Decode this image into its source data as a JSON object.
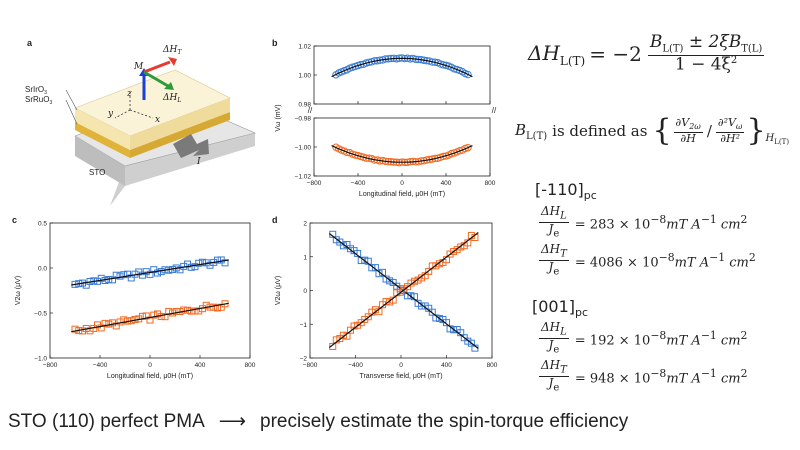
{
  "panels": {
    "a": {
      "letter": "a",
      "layer_top": "SrIrO",
      "layer_top_sub": "3",
      "layer_mid": "SrRuO",
      "layer_mid_sub": "3",
      "substrate": "STO",
      "vec_M": "M",
      "vec_HT": "ΔH",
      "vec_HT_sub": "T",
      "vec_HL": "ΔH",
      "vec_HL_sub": "L",
      "axis_x": "x",
      "axis_y": "y",
      "axis_z": "z",
      "current": "I",
      "colors": {
        "yellow": "#f2c94c",
        "stack_top": "#fbf3d7",
        "substrate": "#d9d9d9",
        "M": "#1a3fd6",
        "HT": "#e63b2e",
        "HL": "#2e9a3a"
      }
    },
    "b": {
      "letter": "b"
    },
    "c": {
      "letter": "c"
    },
    "d": {
      "letter": "d"
    }
  },
  "chart_data": [
    {
      "id": "b",
      "type": "scatter",
      "broken_axis": true,
      "xlabel": "Longitudinal field, μ0H (mT)",
      "ylabel": "Vω (mV)",
      "xlim": [
        -800,
        800
      ],
      "xticks": [
        "−800",
        "−400",
        "0",
        "400",
        "800"
      ],
      "upper": {
        "ylim": [
          0.98,
          1.02
        ],
        "yticks": [
          "0.98",
          "1.00",
          "1.02"
        ]
      },
      "lower": {
        "ylim": [
          -1.02,
          -0.98
        ],
        "yticks": [
          "−1.02",
          "−1.00",
          "−0.98"
        ]
      },
      "series": [
        {
          "name": "positive",
          "color": "#3a7bd5",
          "panel": "upper",
          "fit": "parabola",
          "x_range": [
            -600,
            600
          ],
          "vertex": 1.0115,
          "a": -3.1e-08
        },
        {
          "name": "negative",
          "color": "#f26a21",
          "panel": "lower",
          "fit": "parabola",
          "x_range": [
            -600,
            600
          ],
          "vertex": -1.0105,
          "a": 2.8e-08
        }
      ]
    },
    {
      "id": "c",
      "type": "scatter",
      "xlabel": "Longitudinal field, μ0H (mT)",
      "ylabel": "V2ω (μV)",
      "xlim": [
        -800,
        800
      ],
      "ylim": [
        -1.0,
        0.5
      ],
      "xticks": [
        "−800",
        "−400",
        "0",
        "400",
        "800"
      ],
      "yticks": [
        "−1.0",
        "−0.5",
        "0.0",
        "0.5"
      ],
      "series": [
        {
          "name": "blue",
          "color": "#3a7bd5",
          "x_range": [
            -600,
            600
          ],
          "intercept": -0.05,
          "slope": 0.00022
        },
        {
          "name": "orange",
          "color": "#f26a21",
          "x_range": [
            -600,
            600
          ],
          "intercept": -0.55,
          "slope": 0.00025
        }
      ]
    },
    {
      "id": "d",
      "type": "scatter",
      "xlabel": "Transverse field, μ0H (mT)",
      "ylabel": "V2ω (μV)",
      "xlim": [
        -800,
        800
      ],
      "ylim": [
        -2,
        2
      ],
      "xticks": [
        "−800",
        "−400",
        "0",
        "400",
        "800"
      ],
      "yticks": [
        "−2",
        "−1",
        "0",
        "1",
        "2"
      ],
      "series": [
        {
          "name": "blue",
          "color": "#3a7bd5",
          "x_range": [
            -600,
            650
          ],
          "intercept": 0.05,
          "slope": -0.0026
        },
        {
          "name": "orange",
          "color": "#f26a21",
          "x_range": [
            -600,
            650
          ],
          "intercept": -0.05,
          "slope": 0.0026
        }
      ]
    }
  ],
  "equations": {
    "main_lhs": "ΔH",
    "main_lhs_sub": "L(T)",
    "main_eq": "= −2",
    "main_num": "B",
    "main_num_sub1": "L(T)",
    "main_num_pm": "± 2ξB",
    "main_num_sub2": "T(L)",
    "main_den": "1 − 4ξ",
    "main_den_sup": "2",
    "def_prefix": "B",
    "def_prefix_sub": "L(T)",
    "def_text": "is defined as",
    "def_num1": "∂V",
    "def_num1_sub": "2ω",
    "def_den1": "∂H",
    "def_slash": "/",
    "def_num2": "∂²V",
    "def_num2_sub": "ω",
    "def_den2": "∂H²",
    "def_subscript": "H",
    "def_subscript_sub": "L(T)"
  },
  "directions": [
    {
      "label": "[-110]",
      "sub": "pc",
      "rows": [
        {
          "num": "ΔH",
          "num_sub": "L",
          "den": "J",
          "den_sub": "e",
          "value": "= 283 × 10",
          "exp": "−8",
          "unit": "mT A",
          "unit_exp": "−1",
          "unit2": " cm",
          "unit2_exp": "2"
        },
        {
          "num": "ΔH",
          "num_sub": "T",
          "den": "J",
          "den_sub": "e",
          "value": "= 4086 × 10",
          "exp": "−8",
          "unit": "mT A",
          "unit_exp": "−1",
          "unit2": " cm",
          "unit2_exp": "2"
        }
      ]
    },
    {
      "label": "[001]",
      "sub": "pc",
      "rows": [
        {
          "num": "ΔH",
          "num_sub": "L",
          "den": "J",
          "den_sub": "e",
          "value": "= 192 × 10",
          "exp": "−8",
          "unit": "mT A",
          "unit_exp": "−1",
          "unit2": " cm",
          "unit2_exp": "2"
        },
        {
          "num": "ΔH",
          "num_sub": "T",
          "den": "J",
          "den_sub": "e",
          "value": "= 948 × 10",
          "exp": "−8",
          "unit": "mT A",
          "unit_exp": "−1",
          "unit2": " cm",
          "unit2_exp": "2"
        }
      ]
    }
  ],
  "bottom": {
    "left": "STO (110) perfect PMA",
    "arrow": "⟶",
    "right": "precisely estimate the spin-torque efficiency"
  }
}
